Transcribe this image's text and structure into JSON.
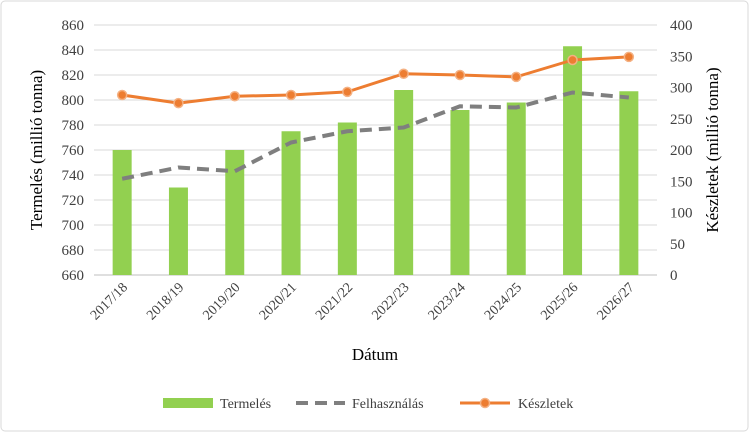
{
  "chart_data": {
    "type": "bar",
    "categories": [
      "2017/18",
      "2018/19",
      "2019/20",
      "2020/21",
      "2021/22",
      "2022/23",
      "2023/24",
      "2024/25",
      "2025/26",
      "2026/27"
    ],
    "xlabel": "Dátum",
    "ylabel": "Termelés (millió tonna)",
    "ylabel_right": "Készletek (millió tonna)",
    "ylim": [
      660,
      860
    ],
    "ylim_right": [
      0,
      400
    ],
    "yticks": [
      660,
      680,
      700,
      720,
      740,
      760,
      780,
      800,
      820,
      840,
      860
    ],
    "yticks_right": [
      0,
      50,
      100,
      150,
      200,
      250,
      300,
      350,
      400
    ],
    "grid": true,
    "legend_position": "bottom",
    "series": [
      {
        "name": "Termelés",
        "type": "bar",
        "axis": "left",
        "color": "#92D050",
        "values": [
          760,
          730,
          760,
          775,
          782,
          808,
          792,
          798,
          843,
          807
        ]
      },
      {
        "name": "Felhasználás",
        "type": "line",
        "style": "dashed",
        "axis": "left",
        "color": "#7F7F7F",
        "values": [
          737,
          746,
          743,
          766,
          775,
          778,
          795,
          794,
          806,
          802
        ]
      },
      {
        "name": "Készletek",
        "type": "line",
        "marker": "circle",
        "axis": "right",
        "color": "#ED7D31",
        "values": [
          288,
          275,
          286,
          288,
          293,
          322,
          320,
          317,
          344,
          349
        ]
      }
    ]
  }
}
